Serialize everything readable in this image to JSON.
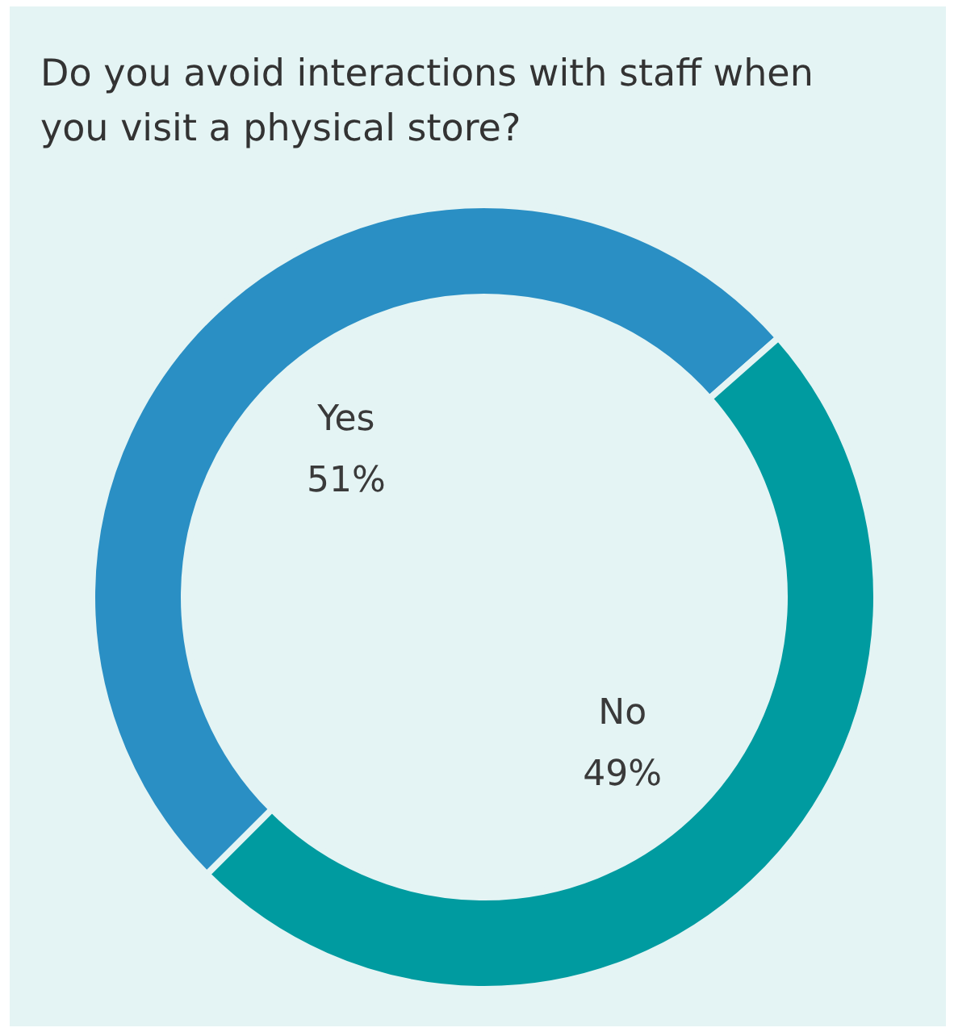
{
  "chart_data": {
    "type": "donut",
    "title": "Do you avoid interactions with staff when you visit a physical store?",
    "categories": [
      "Yes",
      "No"
    ],
    "values": [
      51,
      49
    ],
    "colors": [
      "#2a8fc4",
      "#009ba0"
    ],
    "value_labels": [
      "51%",
      "49%"
    ],
    "legend": false
  }
}
